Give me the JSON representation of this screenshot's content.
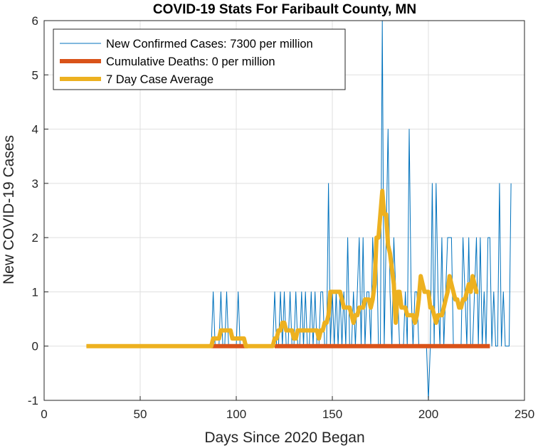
{
  "chart_data": {
    "type": "line",
    "title": "COVID-19 Stats For Faribault County, MN",
    "xlabel": "Days Since 2020 Began",
    "ylabel": "New COVID-19 Cases",
    "xlim": [
      0,
      250
    ],
    "ylim": [
      -1,
      6
    ],
    "xticks": [
      0,
      50,
      100,
      150,
      200,
      250
    ],
    "yticks": [
      -1,
      0,
      1,
      2,
      3,
      4,
      5,
      6
    ],
    "grid": true,
    "legend_position": "top-left",
    "series": [
      {
        "name": "New Confirmed Cases: 7300 per million",
        "color": "#0072BD",
        "line_width": "thin",
        "x_start": 22,
        "values": [
          0,
          0,
          0,
          0,
          0,
          0,
          0,
          0,
          0,
          0,
          0,
          0,
          0,
          0,
          0,
          0,
          0,
          0,
          0,
          0,
          0,
          0,
          0,
          0,
          0,
          0,
          0,
          0,
          0,
          0,
          0,
          0,
          0,
          0,
          0,
          0,
          0,
          0,
          0,
          0,
          0,
          0,
          0,
          0,
          0,
          0,
          0,
          0,
          0,
          0,
          0,
          0,
          0,
          0,
          0,
          0,
          0,
          0,
          0,
          0,
          0,
          0,
          0,
          0,
          0,
          0,
          1,
          0,
          0,
          0,
          1,
          0,
          0,
          1,
          0,
          0,
          0,
          0,
          0,
          1,
          0,
          0,
          0,
          0,
          0,
          0,
          0,
          0,
          0,
          0,
          0,
          0,
          0,
          0,
          0,
          0,
          0,
          0,
          1,
          0,
          0,
          1,
          0,
          1,
          0,
          0,
          1,
          0,
          0,
          1,
          0,
          0,
          1,
          0,
          1,
          0,
          0,
          1,
          0,
          1,
          0,
          0,
          1,
          1,
          0,
          0,
          3,
          0,
          1,
          0,
          1,
          0,
          1,
          0,
          1,
          0,
          2,
          0,
          0,
          1,
          0,
          1,
          2,
          0,
          2,
          0,
          1,
          1,
          0,
          2,
          1,
          2,
          0,
          0,
          6,
          0,
          2,
          4,
          1,
          0,
          2,
          1,
          1,
          0,
          0,
          0,
          1,
          0,
          4,
          1,
          0,
          1,
          1,
          0,
          0,
          0,
          0,
          0,
          -1,
          0,
          3,
          0,
          3,
          1,
          0,
          2,
          0,
          1,
          2,
          2,
          2,
          0,
          0,
          0,
          0,
          0,
          2,
          1,
          0,
          2,
          0,
          0,
          1,
          2,
          0,
          2,
          0,
          1,
          0,
          2,
          2,
          0,
          1,
          0,
          0,
          3,
          0,
          1,
          0,
          0,
          0,
          3
        ]
      },
      {
        "name": "Cumulative Deaths: 0 per million",
        "color": "#D95319",
        "line_width": "thick",
        "x_range": [
          87,
          232
        ],
        "gaps": [
          [
            106,
            120
          ]
        ],
        "value": 0
      },
      {
        "name": "7 Day Case Average",
        "color": "#EDB120",
        "line_width": "thick",
        "x_start": 22,
        "values": [
          0,
          0,
          0,
          0,
          0,
          0,
          0,
          0,
          0,
          0,
          0,
          0,
          0,
          0,
          0,
          0,
          0,
          0,
          0,
          0,
          0,
          0,
          0,
          0,
          0,
          0,
          0,
          0,
          0,
          0,
          0,
          0,
          0,
          0,
          0,
          0,
          0,
          0,
          0,
          0,
          0,
          0,
          0,
          0,
          0,
          0,
          0,
          0,
          0,
          0,
          0,
          0,
          0,
          0,
          0,
          0,
          0,
          0,
          0,
          0,
          0,
          0,
          0,
          0,
          0,
          0,
          0.14,
          0.14,
          0.14,
          0.14,
          0.29,
          0.29,
          0.29,
          0.29,
          0.29,
          0.29,
          0.14,
          0.14,
          0.14,
          0.14,
          0.14,
          0.14,
          0.14,
          0,
          0,
          0,
          0,
          0,
          0,
          0,
          0,
          0,
          0,
          0,
          0,
          0,
          0,
          0,
          0.14,
          0.14,
          0.29,
          0.29,
          0.43,
          0.43,
          0.29,
          0.29,
          0.29,
          0.29,
          0.14,
          0.14,
          0.29,
          0.29,
          0.29,
          0.29,
          0.29,
          0.29,
          0.29,
          0.29,
          0.29,
          0.29,
          0.29,
          0.14,
          0.29,
          0.29,
          0.43,
          0.43,
          0.57,
          1,
          1,
          1,
          1,
          1,
          1,
          0.86,
          0.71,
          0.71,
          0.71,
          0.71,
          0.57,
          0.43,
          0.57,
          0.57,
          0.71,
          0.71,
          0.71,
          0.86,
          0.86,
          0.86,
          0.71,
          0.86,
          1.14,
          2,
          2,
          2.43,
          2.86,
          2.43,
          2.43,
          1.86,
          1.71,
          1.43,
          1.14,
          0.43,
          1,
          1,
          0.71,
          0.71,
          0.71,
          0.57,
          0.57,
          0.57,
          0.57,
          0.43,
          0.57,
          0.86,
          1.29,
          1.14,
          1,
          1,
          1,
          0.71,
          0.71,
          0.57,
          0.43,
          0.57,
          0.57,
          0.57,
          0.71,
          0.86,
          1,
          1.29,
          1.14,
          1,
          0.86,
          0.86,
          0.71,
          0.71,
          0.86,
          0.86,
          1,
          1.14,
          1,
          1.29,
          1.14,
          1,
          1
        ]
      }
    ]
  }
}
